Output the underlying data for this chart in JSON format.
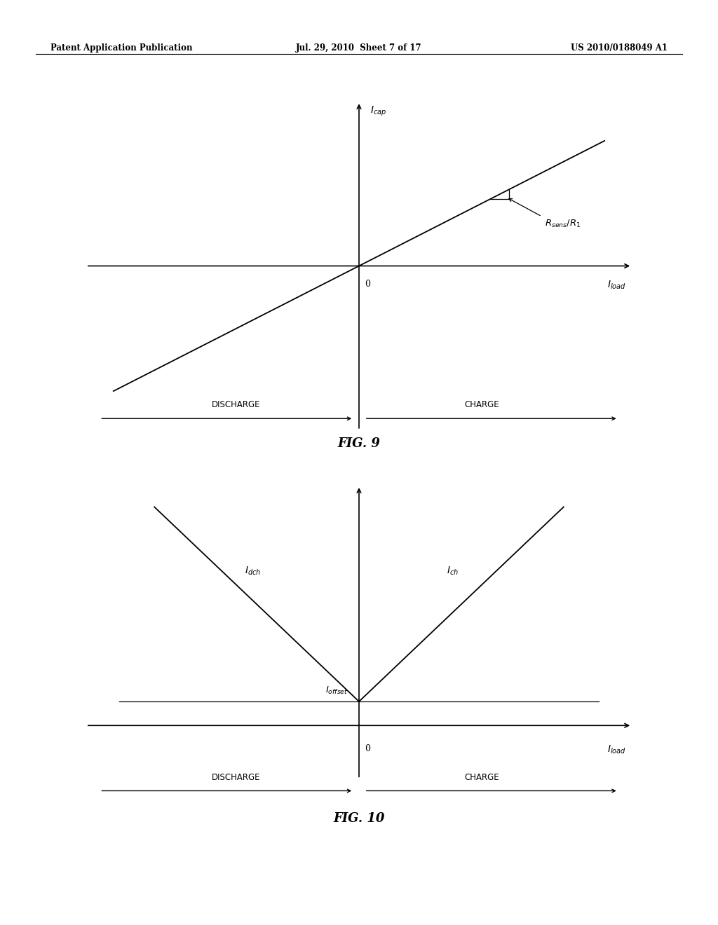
{
  "bg_color": "#ffffff",
  "text_color": "#000000",
  "header_left": "Patent Application Publication",
  "header_center": "Jul. 29, 2010  Sheet 7 of 17",
  "header_right": "US 2010/0188049 A1",
  "fig9_title": "FIG. 9",
  "fig10_title": "FIG. 10",
  "fig9_discharge": "DISCHARGE",
  "fig9_charge": "CHARGE",
  "fig10_discharge": "DISCHARGE",
  "fig10_charge": "CHARGE",
  "line_color": "#000000",
  "axis_color": "#000000"
}
